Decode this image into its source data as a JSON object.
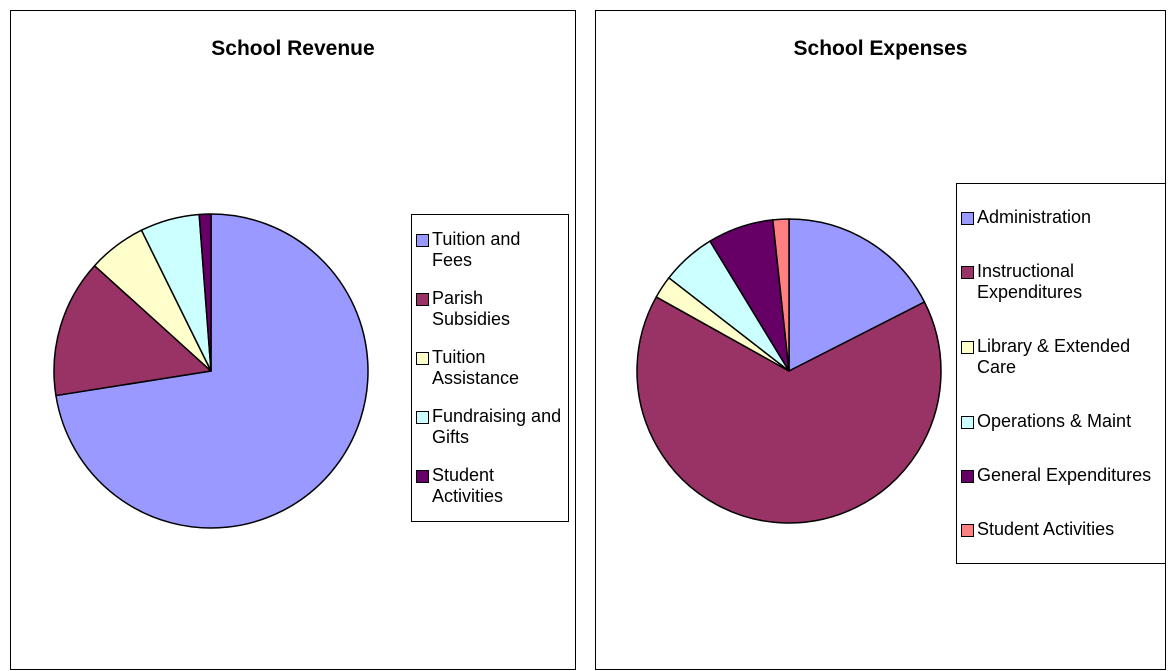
{
  "chart_data": [
    {
      "type": "pie",
      "title": "School Revenue",
      "categories": [
        "Tuition and Fees",
        "Parish Subsidies",
        "Tuition Assistance",
        "Fundraising and Gifts",
        "Student Activities"
      ],
      "values": [
        72.5,
        14.2,
        6,
        6.1,
        1.2
      ],
      "colors": [
        "#9999ff",
        "#993366",
        "#ffffcc",
        "#ccffff",
        "#660066"
      ]
    },
    {
      "type": "pie",
      "title": "School Expenses",
      "categories": [
        "Administration",
        "Instructional Expenditures",
        "Library & Extended Care",
        "Operations & Maint",
        "General Expenditures",
        "Student Activities"
      ],
      "values": [
        17.5,
        65.6,
        2.4,
        5.8,
        7,
        1.7
      ],
      "colors": [
        "#9999ff",
        "#993366",
        "#ffffcc",
        "#ccffff",
        "#660066",
        "#ff8080"
      ]
    }
  ]
}
